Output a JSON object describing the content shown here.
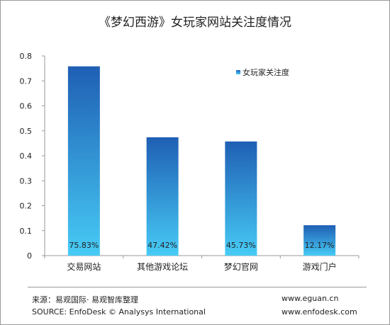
{
  "chart_data": {
    "type": "bar",
    "title": "《梦幻西游》女玩家网站关注度情况",
    "categories": [
      "交易网站",
      "其他游戏论坛",
      "梦幻官网",
      "游戏门户"
    ],
    "series": [
      {
        "name": "女玩家关注度",
        "values": [
          0.7583,
          0.4742,
          0.4573,
          0.1217
        ],
        "value_labels": [
          "75.83%",
          "47.42%",
          "45.73%",
          "12.17%"
        ]
      }
    ],
    "ylim": [
      0,
      0.8
    ],
    "yticks": [
      0,
      0.1,
      0.2,
      0.3,
      0.4,
      0.5,
      0.6,
      0.7,
      0.8
    ],
    "ytick_labels": [
      "0",
      "0.1",
      "0.2",
      "0.3",
      "0.4",
      "0.5",
      "0.6",
      "0.7",
      "0.8"
    ],
    "xlabel": "",
    "ylabel": "",
    "grid": false,
    "legend_position": "top-right",
    "colors": {
      "bar_top": "#1f5fb4",
      "bar_bottom": "#47cbf5",
      "axis": "#9a9a9a",
      "text": "#222222"
    }
  },
  "footer": {
    "source_cn": "来源：易观国际· 易观智库整理",
    "source_en": "SOURCE: EnfoDesk © Analysys International",
    "site1": "www.eguan.cn",
    "site2": "www.enfodesk.com"
  }
}
